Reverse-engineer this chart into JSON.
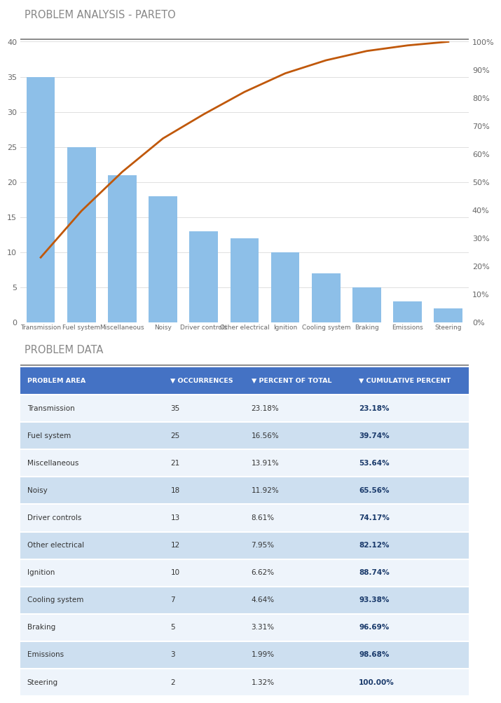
{
  "title_pareto": "PROBLEM ANALYSIS - PARETO",
  "title_data": "PROBLEM DATA",
  "categories": [
    "Transmission",
    "Fuel system",
    "Miscellaneous",
    "Noisy",
    "Driver controls",
    "Other electrical",
    "Ignition",
    "Cooling system",
    "Braking",
    "Emissions",
    "Steering"
  ],
  "occurrences": [
    35,
    25,
    21,
    18,
    13,
    12,
    10,
    7,
    5,
    3,
    2
  ],
  "percent_of_total": [
    "23.18%",
    "16.56%",
    "13.91%",
    "11.92%",
    "8.61%",
    "7.95%",
    "6.62%",
    "4.64%",
    "3.31%",
    "1.99%",
    "1.32%"
  ],
  "cumulative_percent": [
    "23.18%",
    "39.74%",
    "53.64%",
    "65.56%",
    "74.17%",
    "82.12%",
    "88.74%",
    "93.38%",
    "96.69%",
    "98.68%",
    "100.00%"
  ],
  "cumulative_values": [
    23.18,
    39.74,
    53.64,
    65.56,
    74.17,
    82.12,
    88.74,
    93.38,
    96.69,
    98.68,
    100.0
  ],
  "bar_color": "#8DBFE8",
  "line_color": "#C0580A",
  "bg_color": "#FFFFFF",
  "title_color": "#888888",
  "header_bg_color": "#4472C4",
  "header_text_color": "#FFFFFF",
  "row_alt_color": "#CDDFF0",
  "row_main_color": "#EEF4FB",
  "table_text_color": "#333333",
  "ylim_left": [
    0,
    40
  ],
  "ylim_right": [
    0,
    100
  ],
  "yticks_left": [
    0,
    5,
    10,
    15,
    20,
    25,
    30,
    35,
    40
  ],
  "yticks_right": [
    0,
    10,
    20,
    30,
    40,
    50,
    60,
    70,
    80,
    90,
    100
  ],
  "grid_color": "#E0E0E0",
  "separator_line_color": "#777777"
}
